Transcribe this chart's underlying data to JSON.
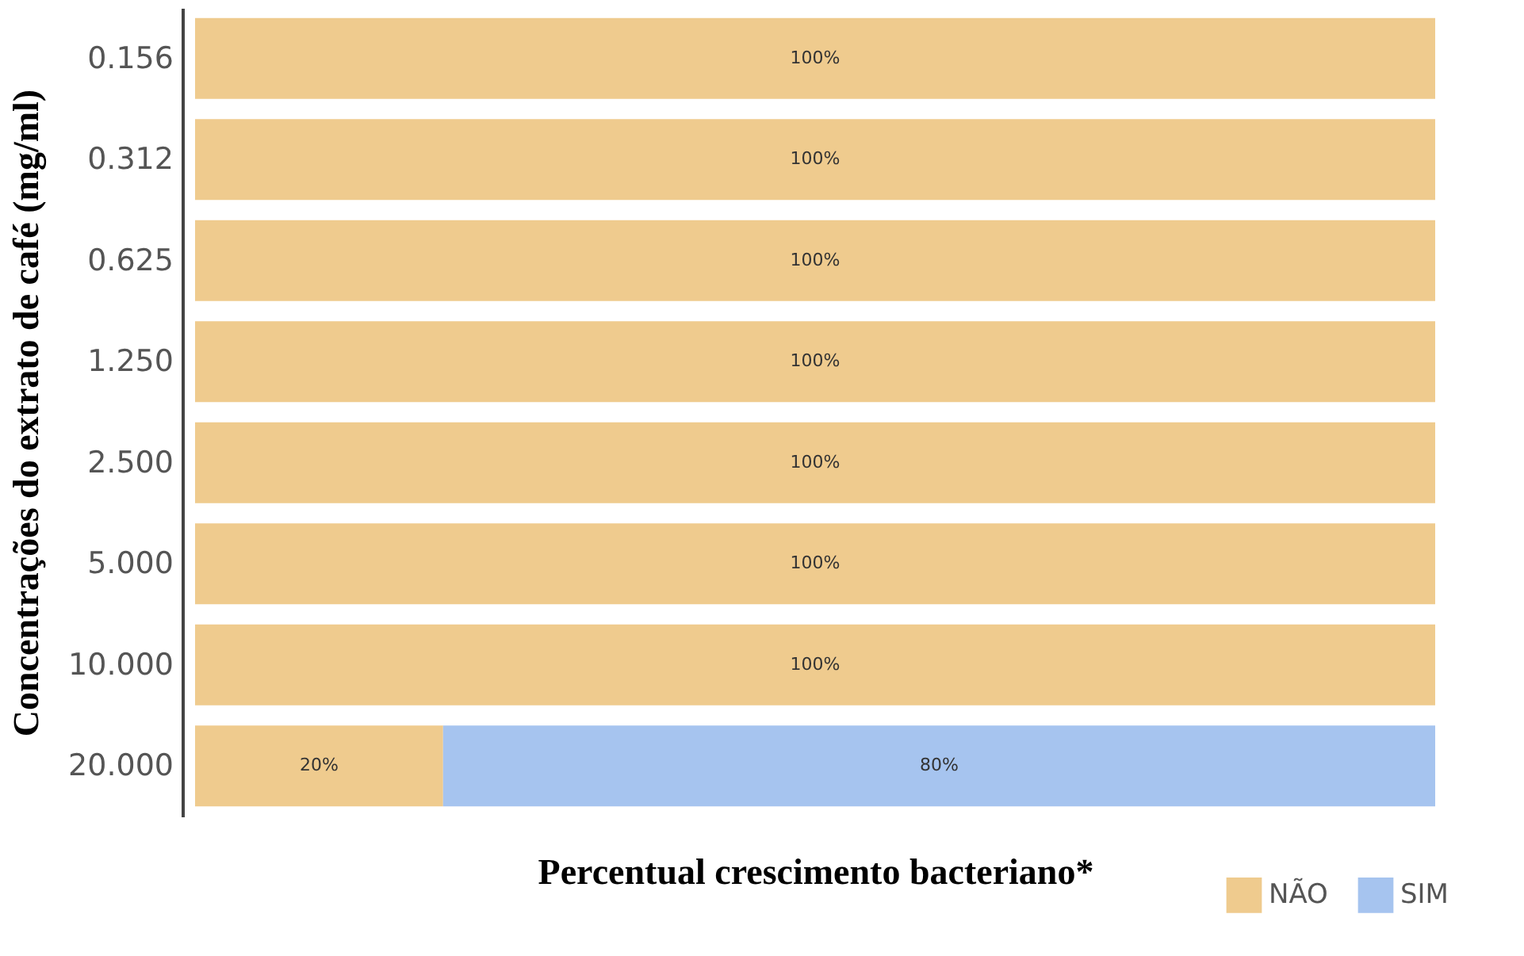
{
  "chart_data": {
    "type": "bar",
    "orientation": "horizontal",
    "stacked": true,
    "xlabel": "Percentual crescimento bacteriano*",
    "ylabel": "Concentrações do extrato de café (mg/ml)",
    "categories": [
      "0.156",
      "0.312",
      "0.625",
      "1.250",
      "2.500",
      "5.000",
      "10.000",
      "20.000"
    ],
    "xlim": [
      0,
      100
    ],
    "tick_labels": "y",
    "grid": false,
    "legend": "bottom right",
    "series": [
      {
        "name": "NÃO",
        "color": "#efcb8e",
        "values": [
          100,
          100,
          100,
          100,
          100,
          100,
          100,
          20
        ],
        "value_labels": [
          "100%",
          "100%",
          "100%",
          "100%",
          "100%",
          "100%",
          "100%",
          "20%"
        ]
      },
      {
        "name": "SIM",
        "color": "#a6c4ef",
        "values": [
          null,
          null,
          null,
          null,
          null,
          null,
          null,
          80
        ],
        "value_labels": [
          null,
          null,
          null,
          null,
          null,
          null,
          null,
          "80%"
        ]
      }
    ]
  }
}
